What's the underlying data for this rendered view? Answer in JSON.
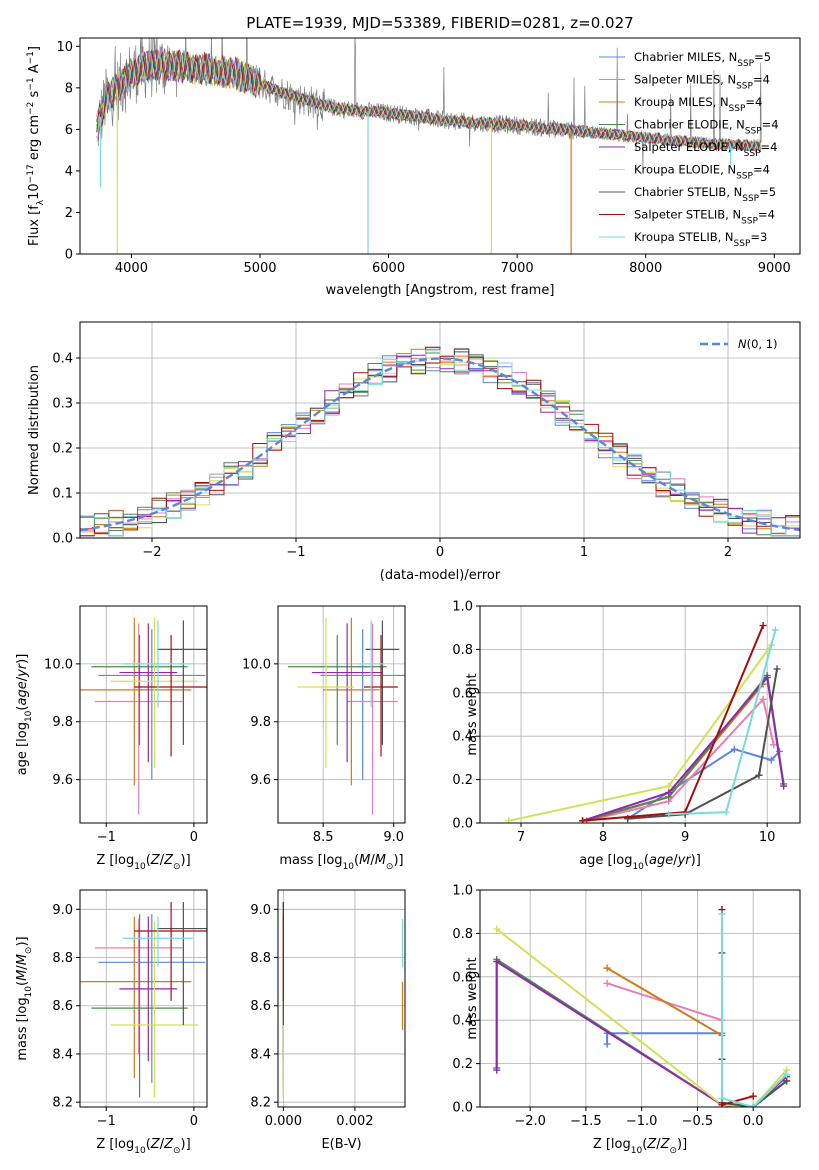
{
  "chart_data": [
    {
      "id": "spectrum",
      "type": "line",
      "title": "PLATE=1939, MJD=53389, FIBERID=0281, z=0.027",
      "xlabel": "wavelength [Angstrom, rest frame]",
      "ylabel": "Flux [fλ10⁻¹⁷ erg cm⁻² s⁻¹ A⁻¹]",
      "xlim": [
        3600,
        9200
      ],
      "ylim": [
        0,
        10.4
      ],
      "xticks": [
        4000,
        5000,
        6000,
        7000,
        8000,
        9000
      ],
      "yticks": [
        0,
        2,
        4,
        6,
        8,
        10
      ],
      "grid": false,
      "legend_position": "top-right",
      "continuum": {
        "x": [
          3730,
          3800,
          3900,
          4000,
          4100,
          4200,
          4400,
          4600,
          4800,
          5000,
          5300,
          5600,
          6000,
          6500,
          7000,
          7500,
          8000,
          8500,
          8900
        ],
        "y": [
          6.0,
          7.4,
          8.0,
          8.7,
          9.0,
          9.1,
          9.0,
          8.9,
          8.7,
          8.2,
          7.5,
          7.0,
          6.8,
          6.4,
          6.2,
          5.9,
          5.6,
          5.3,
          5.2
        ]
      },
      "dips": [
        {
          "x": 3760,
          "y": 3.2
        },
        {
          "x": 3890,
          "y": 0.0
        },
        {
          "x": 5840,
          "y": 0.0
        },
        {
          "x": 6800,
          "y": 0.0
        },
        {
          "x": 7420,
          "y": 0.0
        },
        {
          "x": 8660,
          "y": 4.3
        }
      ],
      "series": [
        {
          "name": "Chabrier MILES",
          "nssp": "5",
          "color": "#5b86dc"
        },
        {
          "name": "Salpeter MILES",
          "nssp": "4",
          "color": "#e87db8"
        },
        {
          "name": "Kroupa MILES",
          "nssp": "4",
          "color": "#d07a18"
        },
        {
          "name": "Chabrier ELODIE",
          "nssp": "4",
          "color": "#4f8a4f"
        },
        {
          "name": "Salpeter ELODIE",
          "nssp": "4",
          "color": "#9227b0"
        },
        {
          "name": "Kroupa ELODIE",
          "nssp": "4",
          "color": "#d4e05a"
        },
        {
          "name": "Chabrier STELIB",
          "nssp": "5",
          "color": "#505050"
        },
        {
          "name": "Salpeter STELIB",
          "nssp": "4",
          "color": "#a50d0d"
        },
        {
          "name": "Kroupa STELIB",
          "nssp": "3",
          "color": "#76dcdc"
        }
      ],
      "data_color": "#808080"
    },
    {
      "id": "residuals",
      "type": "histogram",
      "xlabel": "(data-model)/error",
      "ylabel": "Normed distribution",
      "xlim": [
        -2.5,
        2.5
      ],
      "ylim": [
        0,
        0.48
      ],
      "xticks": [
        -2,
        -1,
        0,
        1,
        2
      ],
      "xtick_labels": [
        "−2",
        "−1",
        "0",
        "1",
        "2"
      ],
      "yticks": [
        0.0,
        0.1,
        0.2,
        0.3,
        0.4
      ],
      "ytick_labels": [
        "0.0",
        "0.1",
        "0.2",
        "0.3",
        "0.4"
      ],
      "grid": true,
      "legend_position": "top-right",
      "reference_curve": {
        "label": "N(0,1)",
        "mean": 0,
        "sigma": 1,
        "color": "#5b86dc",
        "style": "dashed"
      },
      "bin_width": 0.1
    },
    {
      "id": "age_vs_Z",
      "type": "scatter",
      "xlabel": "Z [log10(Z/Z⊙)]",
      "ylabel": "age  [log10(age/yr)]",
      "xlim": [
        -1.3,
        0.15
      ],
      "ylim": [
        9.45,
        10.2
      ],
      "xticks": [
        -1,
        0
      ],
      "xtick_labels": [
        "−1",
        "0"
      ],
      "yticks": [
        9.6,
        9.8,
        10.0
      ],
      "ytick_labels": [
        "9.6",
        "9.8",
        "10.0"
      ],
      "grid": true,
      "points": [
        {
          "x": -0.48,
          "xerr": 0.61,
          "y": 9.96,
          "ylo": 9.6,
          "yhi": 10.12,
          "color": "#5b86dc"
        },
        {
          "x": -0.63,
          "xerr": 0.5,
          "y": 9.87,
          "ylo": 9.48,
          "yhi": 10.14,
          "color": "#e87db8"
        },
        {
          "x": -0.68,
          "xerr": 0.65,
          "y": 9.91,
          "ylo": 9.58,
          "yhi": 10.16,
          "color": "#d07a18"
        },
        {
          "x": -0.62,
          "xerr": 0.55,
          "y": 9.99,
          "ylo": 9.72,
          "yhi": 10.1,
          "color": "#4f8a4f"
        },
        {
          "x": -0.52,
          "xerr": 0.33,
          "y": 9.97,
          "ylo": 9.66,
          "yhi": 10.14,
          "color": "#9227b0"
        },
        {
          "x": -0.45,
          "xerr": 0.5,
          "y": 9.94,
          "ylo": 9.64,
          "yhi": 10.16,
          "color": "#d4e05a"
        },
        {
          "x": -0.12,
          "xerr": 0.3,
          "y": 10.05,
          "ylo": 9.72,
          "yhi": 10.15,
          "color": "#505050"
        },
        {
          "x": -0.26,
          "xerr": 0.42,
          "y": 9.92,
          "ylo": 9.68,
          "yhi": 10.1,
          "color": "#a50d0d"
        },
        {
          "x": -0.41,
          "xerr": 0.4,
          "y": 10.0,
          "ylo": 9.85,
          "yhi": 10.15,
          "color": "#76dcdc"
        }
      ]
    },
    {
      "id": "age_vs_mass",
      "type": "scatter",
      "xlabel": "mass [log10(M/M⊙)]",
      "xlim": [
        8.18,
        9.08
      ],
      "ylim": [
        9.45,
        10.2
      ],
      "xticks": [
        8.5,
        9.0
      ],
      "xtick_labels": [
        "8.5",
        "9.0"
      ],
      "yticks": [
        9.6,
        9.8,
        10.0
      ],
      "ytick_labels": [
        "9.6",
        "9.8",
        "10.0"
      ],
      "grid": true,
      "points": [
        {
          "x": 8.78,
          "xerr": 0.3,
          "y": 9.96,
          "ylo": 9.6,
          "yhi": 10.12,
          "color": "#5b86dc"
        },
        {
          "x": 8.85,
          "xerr": 0.18,
          "y": 9.87,
          "ylo": 9.48,
          "yhi": 10.14,
          "color": "#e87db8"
        },
        {
          "x": 8.7,
          "xerr": 0.2,
          "y": 9.91,
          "ylo": 9.58,
          "yhi": 10.16,
          "color": "#d07a18"
        },
        {
          "x": 8.6,
          "xerr": 0.35,
          "y": 9.99,
          "ylo": 9.72,
          "yhi": 10.1,
          "color": "#4f8a4f"
        },
        {
          "x": 8.67,
          "xerr": 0.25,
          "y": 9.97,
          "ylo": 9.66,
          "yhi": 10.14,
          "color": "#9227b0"
        },
        {
          "x": 8.52,
          "xerr": 0.2,
          "y": 9.92,
          "ylo": 9.64,
          "yhi": 10.16,
          "color": "#d4e05a"
        },
        {
          "x": 8.92,
          "xerr": 0.12,
          "y": 10.05,
          "ylo": 9.72,
          "yhi": 10.15,
          "color": "#505050"
        },
        {
          "x": 8.91,
          "xerr": 0.12,
          "y": 9.92,
          "ylo": 9.68,
          "yhi": 10.1,
          "color": "#a50d0d"
        },
        {
          "x": 8.84,
          "xerr": 0.09,
          "y": 10.0,
          "ylo": 9.85,
          "yhi": 10.15,
          "color": "#76dcdc"
        }
      ]
    },
    {
      "id": "weight_vs_age",
      "type": "line",
      "xlabel": "age  [log10(age/yr)]",
      "ylabel": "mass weight",
      "xlim": [
        6.5,
        10.4
      ],
      "ylim": [
        0,
        1.0
      ],
      "xticks": [
        7,
        8,
        9,
        10
      ],
      "xtick_labels": [
        "7",
        "8",
        "9",
        "10"
      ],
      "yticks": [
        0.0,
        0.2,
        0.4,
        0.6,
        0.8,
        1.0
      ],
      "ytick_labels": [
        "0.0",
        "0.2",
        "0.4",
        "0.6",
        "0.8",
        "1.0"
      ],
      "grid": true,
      "series": [
        {
          "color": "#5b86dc",
          "x": [
            8.3,
            9.6,
            10.05,
            10.15
          ],
          "y": [
            0.02,
            0.34,
            0.29,
            0.33
          ]
        },
        {
          "color": "#e87db8",
          "x": [
            7.8,
            8.8,
            9.95,
            10.08
          ],
          "y": [
            0.01,
            0.1,
            0.57,
            0.36
          ]
        },
        {
          "color": "#d07a18",
          "x": [
            7.8,
            8.8,
            9.95
          ],
          "y": [
            0.01,
            0.12,
            0.64
          ]
        },
        {
          "color": "#4f8a4f",
          "x": [
            7.75,
            8.8,
            10.0,
            10.2
          ],
          "y": [
            0.01,
            0.12,
            0.68,
            0.18
          ]
        },
        {
          "color": "#9227b0",
          "x": [
            7.75,
            8.8,
            10.0,
            10.2
          ],
          "y": [
            0.01,
            0.14,
            0.67,
            0.17
          ]
        },
        {
          "color": "#d4e05a",
          "x": [
            6.85,
            8.8,
            10.05
          ],
          "y": [
            0.01,
            0.17,
            0.82
          ]
        },
        {
          "color": "#505050",
          "x": [
            8.3,
            9.0,
            9.9,
            10.12
          ],
          "y": [
            0.02,
            0.04,
            0.22,
            0.71
          ]
        },
        {
          "color": "#a50d0d",
          "x": [
            7.75,
            9.0,
            9.95
          ],
          "y": [
            0.01,
            0.05,
            0.91
          ]
        },
        {
          "color": "#76dcdc",
          "x": [
            8.8,
            9.5,
            10.1
          ],
          "y": [
            0.04,
            0.05,
            0.89
          ]
        }
      ]
    },
    {
      "id": "mass_vs_Z",
      "type": "scatter",
      "xlabel": "Z [log10(Z/Z⊙)]",
      "ylabel": "mass [log10(M/M⊙)]",
      "xlim": [
        -1.3,
        0.15
      ],
      "ylim": [
        8.18,
        9.08
      ],
      "xticks": [
        -1,
        0
      ],
      "xtick_labels": [
        "−1",
        "0"
      ],
      "yticks": [
        8.2,
        8.4,
        8.6,
        8.8,
        9.0
      ],
      "ytick_labels": [
        "8.2",
        "8.4",
        "8.6",
        "8.8",
        "9.0"
      ],
      "grid": true,
      "points": [
        {
          "x": -0.48,
          "xerr": 0.61,
          "y": 8.78,
          "ylo": 8.28,
          "yhi": 8.98,
          "color": "#5b86dc"
        },
        {
          "x": -0.63,
          "xerr": 0.5,
          "y": 8.84,
          "ylo": 8.4,
          "yhi": 8.96,
          "color": "#e87db8"
        },
        {
          "x": -0.68,
          "xerr": 0.65,
          "y": 8.7,
          "ylo": 8.3,
          "yhi": 8.97,
          "color": "#d07a18"
        },
        {
          "x": -0.62,
          "xerr": 0.55,
          "y": 8.59,
          "ylo": 8.22,
          "yhi": 8.98,
          "color": "#4f8a4f"
        },
        {
          "x": -0.52,
          "xerr": 0.33,
          "y": 8.67,
          "ylo": 8.37,
          "yhi": 8.97,
          "color": "#9227b0"
        },
        {
          "x": -0.45,
          "xerr": 0.5,
          "y": 8.52,
          "ylo": 8.22,
          "yhi": 8.95,
          "color": "#d4e05a"
        },
        {
          "x": -0.12,
          "xerr": 0.3,
          "y": 8.92,
          "ylo": 8.52,
          "yhi": 9.03,
          "color": "#505050"
        },
        {
          "x": -0.26,
          "xerr": 0.42,
          "y": 8.91,
          "ylo": 8.62,
          "yhi": 9.03,
          "color": "#a50d0d"
        },
        {
          "x": -0.41,
          "xerr": 0.4,
          "y": 8.88,
          "ylo": 8.76,
          "yhi": 8.97,
          "color": "#76dcdc"
        }
      ]
    },
    {
      "id": "mass_vs_ebv",
      "type": "scatter",
      "xlabel": "E(B-V)",
      "xlim": [
        -0.00015,
        0.0034
      ],
      "ylim": [
        8.18,
        9.08
      ],
      "xticks": [
        0.0,
        0.002
      ],
      "xtick_labels": [
        "0.000",
        "0.002"
      ],
      "yticks": [
        8.2,
        8.4,
        8.6,
        8.8,
        9.0
      ],
      "ytick_labels": [
        "8.2",
        "8.4",
        "8.6",
        "8.8",
        "9.0"
      ],
      "grid": true,
      "points": [
        {
          "x": 0.0,
          "y": 8.78,
          "ylo": 8.28,
          "yhi": 8.98,
          "color": "#5b86dc"
        },
        {
          "x": 0.0,
          "y": 8.84,
          "ylo": 8.4,
          "yhi": 8.96,
          "color": "#e87db8"
        },
        {
          "x": 0.00333,
          "y": 8.6,
          "ylo": 8.5,
          "yhi": 8.7,
          "color": "#d07a18"
        },
        {
          "x": 0.0,
          "y": 8.59,
          "ylo": 8.22,
          "yhi": 8.98,
          "color": "#4f8a4f"
        },
        {
          "x": 0.0,
          "y": 8.67,
          "ylo": 8.37,
          "yhi": 8.97,
          "color": "#9227b0"
        },
        {
          "x": 0.0,
          "y": 8.52,
          "ylo": 8.22,
          "yhi": 8.95,
          "color": "#d4e05a"
        },
        {
          "x": 0.0,
          "y": 8.92,
          "ylo": 8.52,
          "yhi": 9.03,
          "color": "#505050"
        },
        {
          "x": 0.0,
          "y": 8.91,
          "ylo": 8.62,
          "yhi": 9.03,
          "color": "#a50d0d"
        },
        {
          "x": 0.00333,
          "y": 8.86,
          "ylo": 8.76,
          "yhi": 8.96,
          "color": "#76dcdc"
        }
      ]
    },
    {
      "id": "weight_vs_Z",
      "type": "line",
      "xlabel": "Z [log10(Z/Z⊙)]",
      "ylabel": "mass weight",
      "xlim": [
        -2.45,
        0.42
      ],
      "ylim": [
        0,
        1.0
      ],
      "xticks": [
        -2.0,
        -1.5,
        -1.0,
        -0.5,
        0.0
      ],
      "xtick_labels": [
        "−2.0",
        "−1.5",
        "−1.0",
        "−0.5",
        "0.0"
      ],
      "yticks": [
        0.0,
        0.2,
        0.4,
        0.6,
        0.8,
        1.0
      ],
      "ytick_labels": [
        "0.0",
        "0.2",
        "0.4",
        "0.6",
        "0.8",
        "1.0"
      ],
      "grid": true,
      "series": [
        {
          "color": "#5b86dc",
          "x": [
            -1.31,
            -1.31,
            -0.28,
            -0.28,
            0.0
          ],
          "y": [
            0.29,
            0.34,
            0.34,
            0.02,
            0.0
          ]
        },
        {
          "color": "#e87db8",
          "x": [
            -1.31,
            -0.28,
            -0.28,
            0.0,
            0.3
          ],
          "y": [
            0.57,
            0.4,
            0.01,
            0.0,
            0.12
          ]
        },
        {
          "color": "#d07a18",
          "x": [
            -1.31,
            -0.28,
            -0.28,
            0.0
          ],
          "y": [
            0.64,
            0.33,
            0.01,
            0.0
          ]
        },
        {
          "color": "#4f8a4f",
          "x": [
            -2.3,
            -2.3,
            -0.28,
            0.0,
            0.3
          ],
          "y": [
            0.18,
            0.68,
            0.01,
            0.0,
            0.12
          ]
        },
        {
          "color": "#9227b0",
          "x": [
            -2.3,
            -2.3,
            -0.28,
            0.0,
            0.3
          ],
          "y": [
            0.17,
            0.67,
            0.01,
            0.0,
            0.14
          ]
        },
        {
          "color": "#d4e05a",
          "x": [
            -2.3,
            -0.28,
            0.0,
            0.3
          ],
          "y": [
            0.82,
            0.01,
            0.0,
            0.17
          ]
        },
        {
          "color": "#505050",
          "x": [
            -0.28,
            -0.28,
            -0.28,
            0.0,
            0.3
          ],
          "y": [
            0.71,
            0.22,
            0.02,
            0.0,
            0.12
          ]
        },
        {
          "color": "#a50d0d",
          "x": [
            -0.28,
            -0.28,
            0.0
          ],
          "y": [
            0.91,
            0.01,
            0.05
          ]
        },
        {
          "color": "#76dcdc",
          "x": [
            -0.28,
            -0.28,
            0.0,
            0.3
          ],
          "y": [
            0.89,
            0.04,
            0.0,
            0.15
          ]
        }
      ]
    }
  ]
}
